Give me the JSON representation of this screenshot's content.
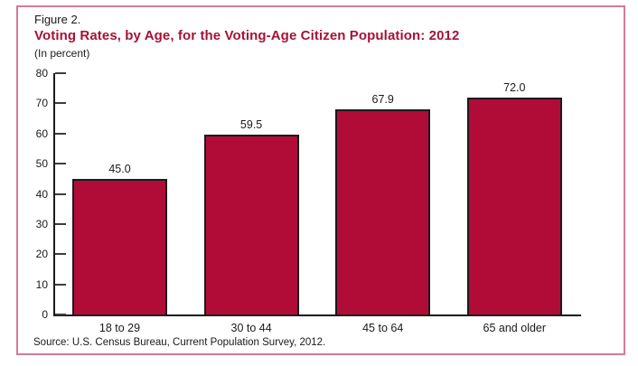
{
  "figure": {
    "label": "Figure 2.",
    "title": "Voting Rates, by Age, for the Voting-Age Citizen Population: 2012",
    "subtitle": "(In percent)",
    "source": "Source: U.S. Census Bureau, Current Population Survey, 2012."
  },
  "colors": {
    "bar_fill": "#b10c38",
    "bar_border": "#1a1a1a",
    "title_text": "#a61237",
    "frame_border": "#d47a95",
    "axis": "#1a1a1a",
    "text": "#1a1a1a"
  },
  "chart_data": {
    "type": "bar",
    "categories": [
      "18 to 29",
      "30 to 44",
      "45 to 64",
      "65 and older"
    ],
    "values": [
      45.0,
      59.5,
      67.9,
      72.0
    ],
    "value_labels": [
      "45.0",
      "59.5",
      "67.9",
      "72.0"
    ],
    "title": "Voting Rates, by Age, for the Voting-Age Citizen Population: 2012",
    "subtitle": "(In percent)",
    "xlabel": "",
    "ylabel": "",
    "ylim": [
      0,
      80
    ],
    "yticks": [
      0,
      10,
      20,
      30,
      40,
      50,
      60,
      70,
      80
    ],
    "grid": false,
    "legend": "none",
    "bar_color": "#b10c38",
    "value_labels_position": "above bars",
    "source": "Source: U.S. Census Bureau, Current Population Survey, 2012."
  }
}
